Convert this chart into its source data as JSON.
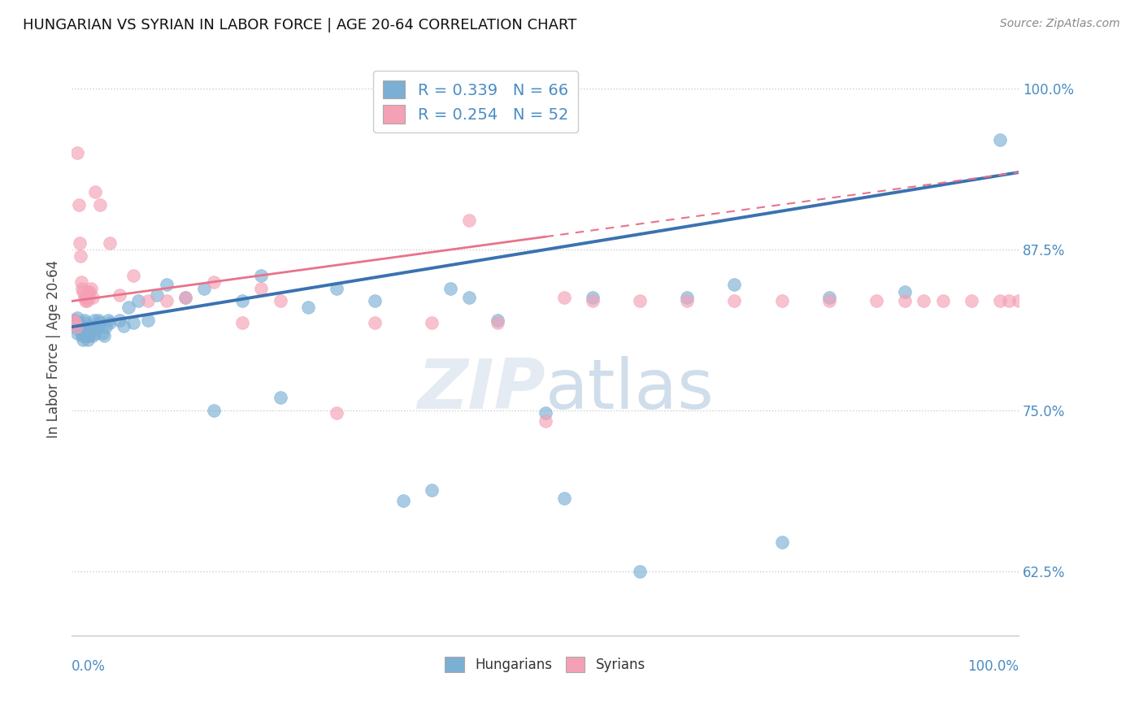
{
  "title": "HUNGARIAN VS SYRIAN IN LABOR FORCE | AGE 20-64 CORRELATION CHART",
  "source": "Source: ZipAtlas.com",
  "ylabel": "In Labor Force | Age 20-64",
  "ytick_values": [
    0.625,
    0.75,
    0.875,
    1.0
  ],
  "ytick_labels": [
    "62.5%",
    "75.0%",
    "87.5%",
    "100.0%"
  ],
  "blue_color": "#7bafd4",
  "pink_color": "#f4a0b5",
  "blue_line_color": "#3b72b0",
  "pink_line_color": "#e8738a",
  "label_color": "#4a8cc4",
  "background_color": "#ffffff",
  "grid_color": "#cccccc",
  "xlim": [
    0.0,
    1.0
  ],
  "ylim": [
    0.575,
    1.02
  ],
  "blue_trend": [
    0.0,
    1.0,
    0.815,
    0.935
  ],
  "pink_trend_solid": [
    0.0,
    0.5,
    0.835,
    0.885
  ],
  "pink_trend_dashed": [
    0.5,
    1.0,
    0.885,
    0.935
  ],
  "blue_x": [
    0.001,
    0.002,
    0.003,
    0.004,
    0.005,
    0.006,
    0.006,
    0.007,
    0.008,
    0.009,
    0.01,
    0.011,
    0.012,
    0.013,
    0.013,
    0.014,
    0.015,
    0.015,
    0.016,
    0.017,
    0.018,
    0.019,
    0.02,
    0.022,
    0.024,
    0.025,
    0.027,
    0.028,
    0.03,
    0.032,
    0.034,
    0.036,
    0.038,
    0.04,
    0.05,
    0.055,
    0.06,
    0.065,
    0.07,
    0.08,
    0.09,
    0.1,
    0.12,
    0.14,
    0.15,
    0.18,
    0.2,
    0.22,
    0.25,
    0.28,
    0.32,
    0.35,
    0.38,
    0.4,
    0.42,
    0.45,
    0.5,
    0.52,
    0.55,
    0.6,
    0.65,
    0.7,
    0.75,
    0.8,
    0.88,
    0.98
  ],
  "blue_y": [
    0.82,
    0.815,
    0.82,
    0.818,
    0.815,
    0.81,
    0.822,
    0.818,
    0.815,
    0.813,
    0.81,
    0.808,
    0.805,
    0.815,
    0.82,
    0.818,
    0.812,
    0.808,
    0.81,
    0.805,
    0.808,
    0.815,
    0.812,
    0.808,
    0.82,
    0.81,
    0.815,
    0.82,
    0.818,
    0.81,
    0.808,
    0.815,
    0.82,
    0.818,
    0.82,
    0.816,
    0.83,
    0.818,
    0.835,
    0.82,
    0.84,
    0.848,
    0.838,
    0.845,
    0.75,
    0.835,
    0.855,
    0.76,
    0.83,
    0.845,
    0.835,
    0.68,
    0.688,
    0.845,
    0.838,
    0.82,
    0.748,
    0.682,
    0.838,
    0.625,
    0.838,
    0.848,
    0.648,
    0.838,
    0.842,
    0.96
  ],
  "pink_x": [
    0.002,
    0.003,
    0.005,
    0.006,
    0.007,
    0.008,
    0.009,
    0.01,
    0.011,
    0.012,
    0.013,
    0.014,
    0.015,
    0.016,
    0.017,
    0.018,
    0.019,
    0.02,
    0.022,
    0.025,
    0.03,
    0.04,
    0.05,
    0.065,
    0.08,
    0.1,
    0.12,
    0.15,
    0.18,
    0.2,
    0.22,
    0.28,
    0.32,
    0.38,
    0.42,
    0.45,
    0.5,
    0.52,
    0.55,
    0.6,
    0.65,
    0.7,
    0.75,
    0.8,
    0.85,
    0.88,
    0.9,
    0.92,
    0.95,
    0.98,
    0.99,
    1.0
  ],
  "pink_y": [
    0.82,
    0.818,
    0.815,
    0.95,
    0.91,
    0.88,
    0.87,
    0.85,
    0.845,
    0.842,
    0.838,
    0.835,
    0.838,
    0.835,
    0.842,
    0.838,
    0.842,
    0.845,
    0.838,
    0.92,
    0.91,
    0.88,
    0.84,
    0.855,
    0.835,
    0.835,
    0.838,
    0.85,
    0.818,
    0.845,
    0.835,
    0.748,
    0.818,
    0.818,
    0.898,
    0.818,
    0.742,
    0.838,
    0.835,
    0.835,
    0.835,
    0.835,
    0.835,
    0.835,
    0.835,
    0.835,
    0.835,
    0.835,
    0.835,
    0.835,
    0.835,
    0.835
  ]
}
